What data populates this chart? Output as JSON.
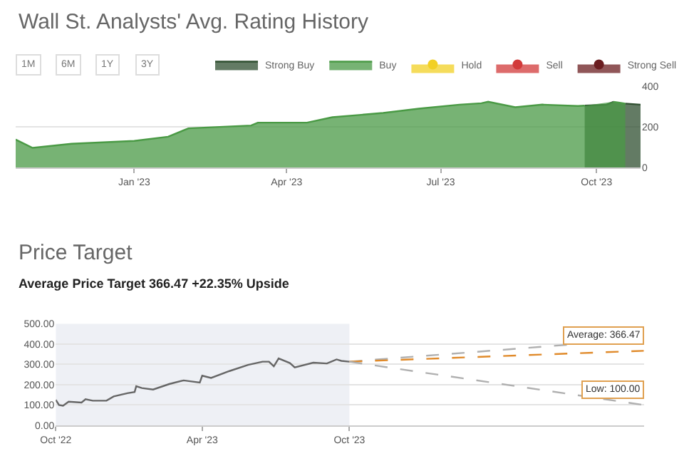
{
  "chart_data": [
    {
      "type": "area",
      "title": "Wall St. Analysts' Avg. Rating History",
      "annotations": [
        "1M",
        "6M",
        "1Y",
        "3Y"
      ],
      "x": [
        "2022-10-23",
        "2022-11-02",
        "2022-11-25",
        "2023-01-01",
        "2023-01-21",
        "2023-02-02",
        "2023-03-11",
        "2023-03-15",
        "2023-04-13",
        "2023-04-28",
        "2023-05-28",
        "2023-06-18",
        "2023-07-12",
        "2023-07-25",
        "2023-07-29",
        "2023-08-14",
        "2023-08-30",
        "2023-09-20",
        "2023-09-24",
        "2023-10-07",
        "2023-10-11",
        "2023-10-14",
        "2023-10-18",
        "2023-10-27"
      ],
      "series": [
        {
          "name": "Strong Buy",
          "color": "#2f4f30",
          "values": [
            null,
            null,
            null,
            null,
            null,
            null,
            null,
            null,
            null,
            null,
            null,
            null,
            null,
            null,
            null,
            null,
            null,
            null,
            305,
            310,
            324,
            null,
            315,
            310
          ]
        },
        {
          "name": "Buy",
          "color": "#4a9a45",
          "values": [
            138,
            97,
            117,
            131,
            152,
            193,
            207,
            221,
            221,
            248,
            269,
            290,
            310,
            317,
            324,
            297,
            310,
            303,
            305,
            null,
            324,
            320,
            315,
            null
          ]
        },
        {
          "name": "Hold",
          "color": "#f2d024",
          "values": [
            null,
            null,
            null,
            null,
            null,
            null,
            null,
            null,
            null,
            null,
            null,
            null,
            null,
            null,
            null,
            null,
            null,
            null,
            null,
            null,
            null,
            null,
            null,
            null
          ]
        },
        {
          "name": "Sell",
          "color": "#d23a3a",
          "values": [
            null,
            null,
            null,
            null,
            null,
            null,
            null,
            null,
            null,
            null,
            null,
            null,
            null,
            null,
            null,
            null,
            null,
            null,
            null,
            null,
            null,
            null,
            null,
            null
          ]
        },
        {
          "name": "Strong Sell",
          "color": "#6b1d20",
          "values": [
            null,
            null,
            null,
            null,
            null,
            null,
            null,
            null,
            null,
            null,
            null,
            null,
            null,
            null,
            null,
            null,
            null,
            null,
            null,
            null,
            null,
            null,
            null,
            null
          ]
        }
      ],
      "xlim": [
        "2022-10-23",
        "2023-10-27"
      ],
      "xticks": [
        {
          "value": "2023-01-01",
          "label": "Jan '23"
        },
        {
          "value": "2023-04-01",
          "label": "Apr '23"
        },
        {
          "value": "2023-07-01",
          "label": "Jul '23"
        },
        {
          "value": "2023-10-01",
          "label": "Oct '23"
        }
      ],
      "ylim": [
        0,
        400
      ],
      "yticks": [
        0,
        200,
        400
      ],
      "grid": "y",
      "legend": "top right"
    },
    {
      "type": "line",
      "title": "Price Target",
      "subtitle": "Average Price Target 366.47 +22.35% Upside",
      "annotations": [
        {
          "text": "Average: 366.47",
          "x": "2024-10-01",
          "y": 366.47
        },
        {
          "text": "Low: 100.00",
          "x": "2024-10-01",
          "y": 100
        }
      ],
      "series": [
        {
          "color": "#666666",
          "line_style": "solid",
          "x": [
            "2022-10-01",
            "2022-10-05",
            "2022-10-10",
            "2022-10-17",
            "2022-11-02",
            "2022-11-07",
            "2022-11-16",
            "2022-12-03",
            "2022-12-12",
            "2022-12-29",
            "2023-01-07",
            "2023-01-09",
            "2023-01-16",
            "2023-01-30",
            "2023-02-19",
            "2023-03-09",
            "2023-03-29",
            "2023-04-01",
            "2023-04-12",
            "2023-05-05",
            "2023-05-28",
            "2023-06-15",
            "2023-06-23",
            "2023-06-29",
            "2023-07-05",
            "2023-07-19",
            "2023-07-25",
            "2023-08-17",
            "2023-09-03",
            "2023-09-15",
            "2023-09-21",
            "2023-10-01"
          ],
          "values": [
            125,
            100,
            96,
            116,
            112,
            128,
            121,
            121,
            142,
            158,
            164,
            192,
            183,
            176,
            203,
            221,
            210,
            244,
            233,
            267,
            297,
            313,
            313,
            290,
            329,
            306,
            285,
            308,
            304,
            324,
            317,
            313
          ]
        },
        {
          "color": "#b0b0b0",
          "line_style": "dashed",
          "x": [
            "2023-10-01",
            "2024-10-01"
          ],
          "values": [
            313,
            425
          ]
        },
        {
          "color": "#e08a2a",
          "line_style": "dashed",
          "x": [
            "2023-10-01",
            "2024-10-01"
          ],
          "values": [
            313,
            366.47
          ]
        },
        {
          "color": "#b0b0b0",
          "line_style": "dashed",
          "x": [
            "2023-10-01",
            "2024-10-01"
          ],
          "values": [
            313,
            100
          ]
        }
      ],
      "bands": [
        {
          "axis": "x",
          "from": "2022-10-01",
          "to": "2023-10-01",
          "color": "#eef0f5"
        }
      ],
      "xlim": [
        "2022-10-01",
        "2024-10-01"
      ],
      "xticks": [
        {
          "value": "2022-10-01",
          "label": "Oct '22"
        },
        {
          "value": "2023-04-01",
          "label": "Apr '23"
        },
        {
          "value": "2023-10-01",
          "label": "Oct '23"
        }
      ],
      "ylim": [
        0,
        500
      ],
      "yticks": [
        {
          "value": 0,
          "label": "0.00"
        },
        {
          "value": 100,
          "label": "100.00"
        },
        {
          "value": 200,
          "label": "200.00"
        },
        {
          "value": 300,
          "label": "300.00"
        },
        {
          "value": 400,
          "label": "400.00"
        },
        {
          "value": 500,
          "label": "500.00"
        }
      ],
      "grid": "y"
    }
  ]
}
